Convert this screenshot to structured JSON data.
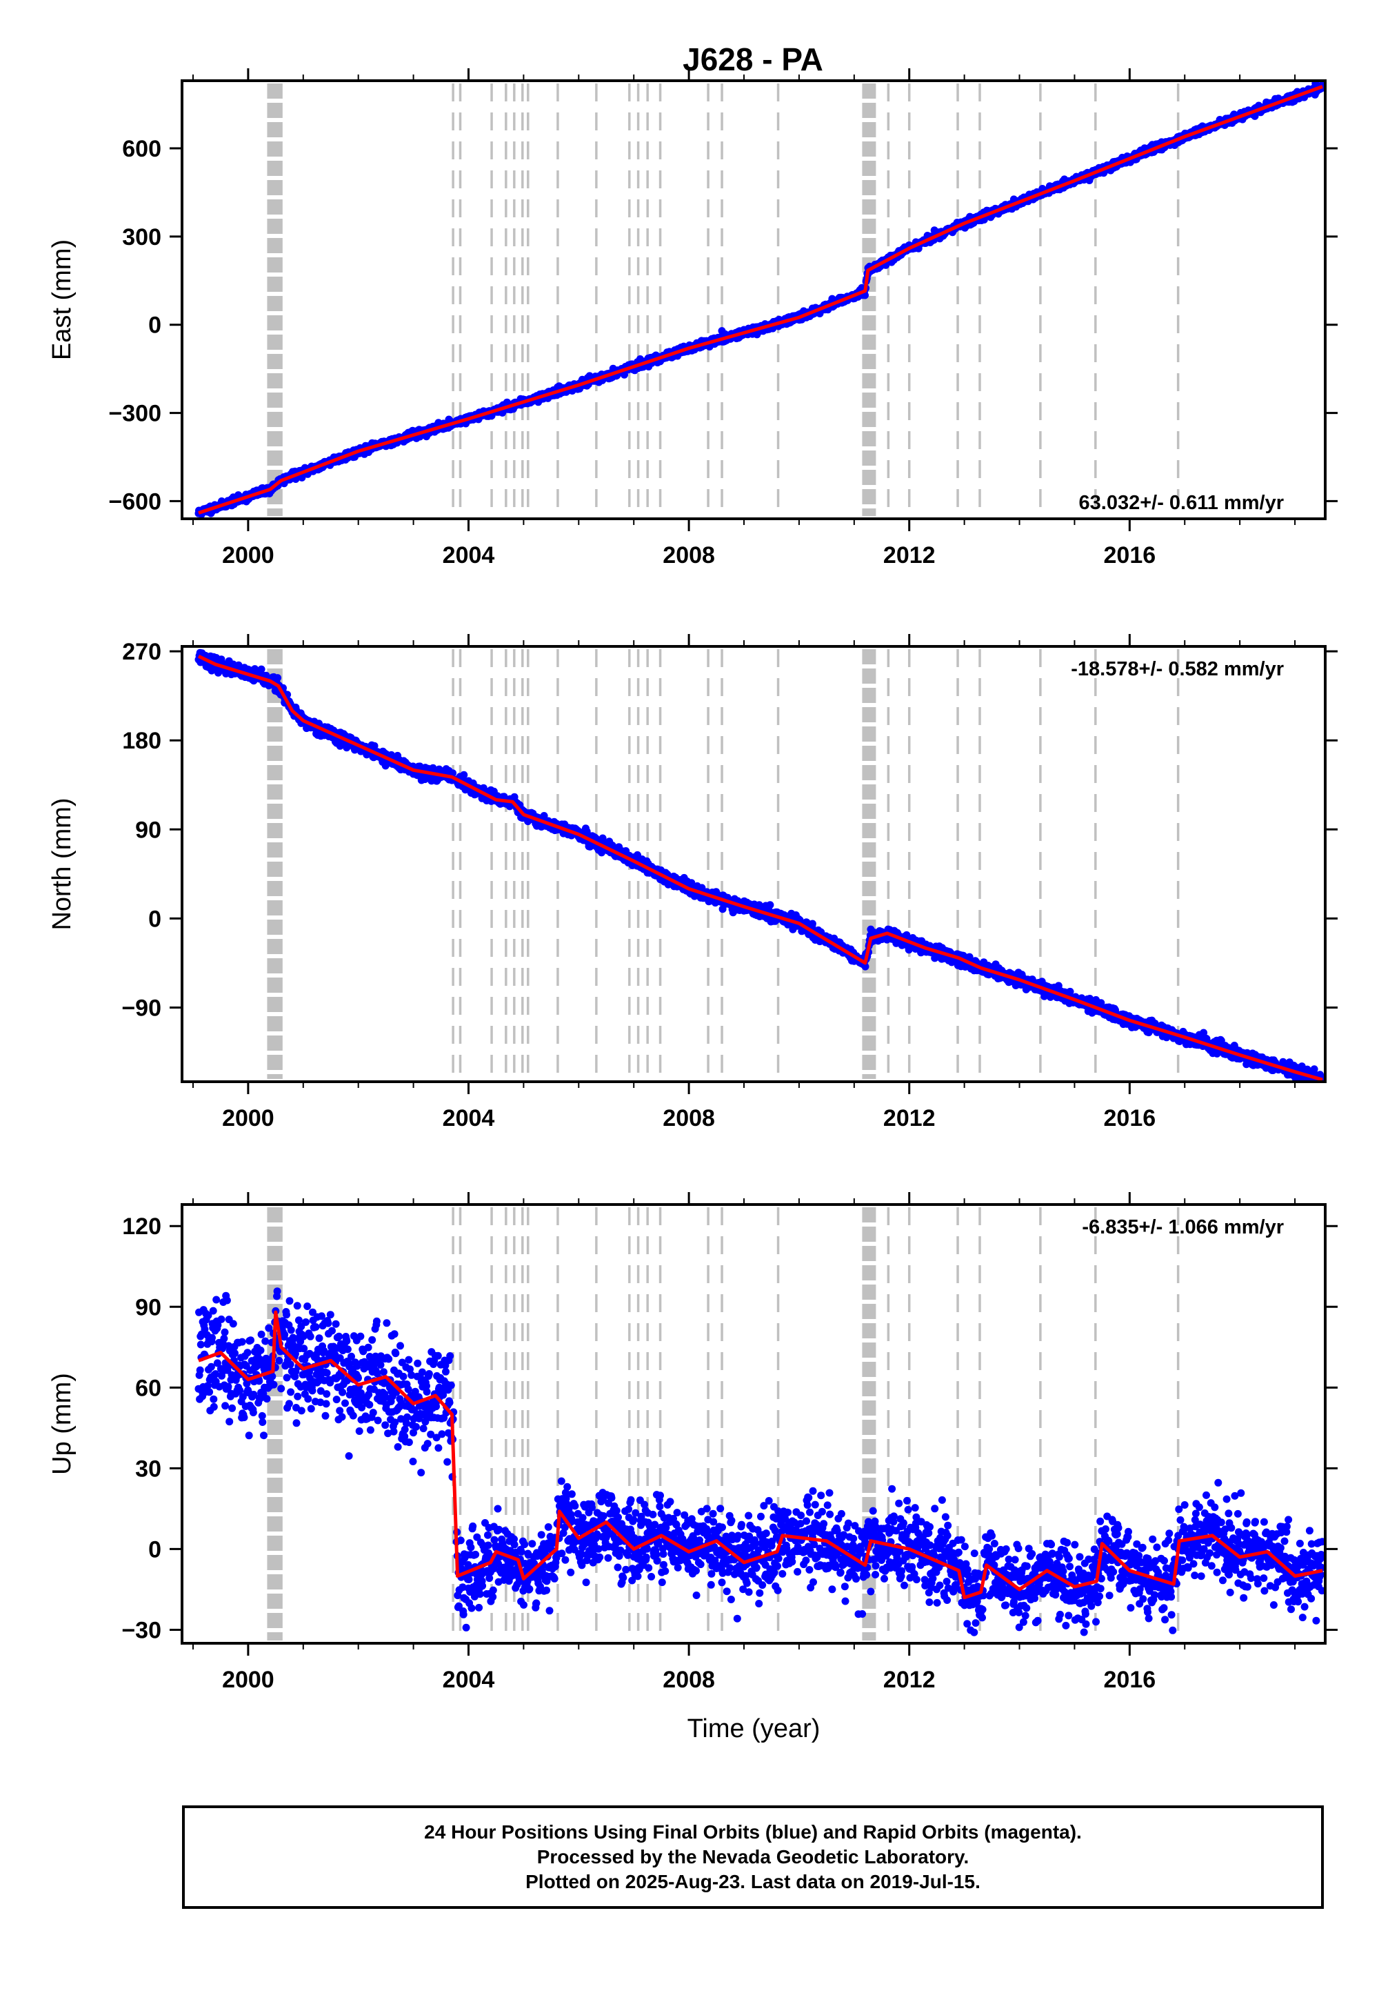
{
  "title": "J628 - PA",
  "caption": [
    "24 Hour Positions Using Final Orbits (blue) and Rapid Orbits (magenta).",
    "Processed by the Nevada Geodetic Laboratory.",
    "Plotted on 2025-Aug-23. Last data on 2019-Jul-15."
  ],
  "colors": {
    "data_points": "#0000ff",
    "model_line": "#ff0000",
    "event_lines": "#c0c0c0",
    "frame": "#000000"
  },
  "chart_data": [
    {
      "type": "scatter",
      "id": "east",
      "ylabel": "East (mm)",
      "xlabel": "",
      "xlim": [
        1998.8,
        2019.55
      ],
      "ylim": [
        -660,
        830
      ],
      "xticks": [
        2000,
        2004,
        2008,
        2012,
        2016
      ],
      "yticks": [
        -600,
        -300,
        0,
        300,
        600
      ],
      "ytick_labels": [
        "−600",
        "−300",
        "0",
        "300",
        "600"
      ],
      "rate_label": "63.032+/- 0.611 mm/yr",
      "rate_position": "bottom-right",
      "model": [
        [
          1999.1,
          -640
        ],
        [
          2000.4,
          -560
        ],
        [
          2000.6,
          -530
        ],
        [
          2002.0,
          -430
        ],
        [
          2004.0,
          -320
        ],
        [
          2006.0,
          -205
        ],
        [
          2008.0,
          -80
        ],
        [
          2010.0,
          25
        ],
        [
          2011.2,
          115
        ],
        [
          2011.25,
          185
        ],
        [
          2012.0,
          260
        ],
        [
          2013.0,
          345
        ],
        [
          2015.0,
          490
        ],
        [
          2017.0,
          640
        ],
        [
          2019.5,
          810
        ]
      ],
      "noise_sd": 6,
      "seed": 11
    },
    {
      "type": "scatter",
      "id": "north",
      "ylabel": "North (mm)",
      "xlabel": "",
      "xlim": [
        1998.8,
        2019.55
      ],
      "ylim": [
        -165,
        275
      ],
      "xticks": [
        2000,
        2004,
        2008,
        2012,
        2016
      ],
      "yticks": [
        -90,
        0,
        90,
        180,
        270
      ],
      "ytick_labels": [
        "−90",
        "0",
        "90",
        "180",
        "270"
      ],
      "rate_label": "-18.578+/- 0.582 mm/yr",
      "rate_position": "top-right",
      "model": [
        [
          1999.1,
          265
        ],
        [
          1999.4,
          257
        ],
        [
          2000.4,
          240
        ],
        [
          2000.55,
          235
        ],
        [
          2000.8,
          210
        ],
        [
          2001.0,
          200
        ],
        [
          2002.0,
          175
        ],
        [
          2003.0,
          150
        ],
        [
          2003.7,
          143
        ],
        [
          2004.5,
          120
        ],
        [
          2004.8,
          118
        ],
        [
          2005.0,
          105
        ],
        [
          2006.0,
          85
        ],
        [
          2007.0,
          58
        ],
        [
          2008.0,
          30
        ],
        [
          2009.0,
          12
        ],
        [
          2010.0,
          -5
        ],
        [
          2011.2,
          -45
        ],
        [
          2011.3,
          -20
        ],
        [
          2011.6,
          -15
        ],
        [
          2012.3,
          -30
        ],
        [
          2012.9,
          -40
        ],
        [
          2013.3,
          -50
        ],
        [
          2014.0,
          -62
        ],
        [
          2015.0,
          -82
        ],
        [
          2016.0,
          -103
        ],
        [
          2017.0,
          -120
        ],
        [
          2018.0,
          -138
        ],
        [
          2019.0,
          -155
        ],
        [
          2019.5,
          -163
        ]
      ],
      "noise_sd": 3,
      "seed": 23
    },
    {
      "type": "scatter",
      "id": "up",
      "ylabel": "Up (mm)",
      "xlabel": "Time (year)",
      "xlim": [
        1998.8,
        2019.55
      ],
      "ylim": [
        -35,
        128
      ],
      "xticks": [
        2000,
        2004,
        2008,
        2012,
        2016
      ],
      "yticks": [
        -30,
        0,
        30,
        60,
        90,
        120
      ],
      "ytick_labels": [
        "−30",
        "0",
        "30",
        "60",
        "90",
        "120"
      ],
      "rate_label": "-6.835+/- 1.066 mm/yr",
      "rate_position": "top-right",
      "model": [
        [
          1999.1,
          70
        ],
        [
          1999.5,
          73
        ],
        [
          2000.0,
          63
        ],
        [
          2000.45,
          66
        ],
        [
          2000.5,
          88
        ],
        [
          2000.6,
          75
        ],
        [
          2001.0,
          67
        ],
        [
          2001.5,
          70
        ],
        [
          2002.0,
          61
        ],
        [
          2002.5,
          64
        ],
        [
          2003.0,
          54
        ],
        [
          2003.4,
          57
        ],
        [
          2003.7,
          50
        ],
        [
          2003.8,
          -10
        ],
        [
          2004.4,
          -5
        ],
        [
          2004.5,
          -1
        ],
        [
          2004.9,
          -4
        ],
        [
          2005.0,
          -11
        ],
        [
          2005.6,
          0
        ],
        [
          2005.65,
          14
        ],
        [
          2006.0,
          4
        ],
        [
          2006.5,
          10
        ],
        [
          2007.0,
          0
        ],
        [
          2007.5,
          5
        ],
        [
          2008.0,
          -1
        ],
        [
          2008.5,
          3
        ],
        [
          2009.0,
          -5
        ],
        [
          2009.6,
          -1
        ],
        [
          2009.7,
          5
        ],
        [
          2010.5,
          3
        ],
        [
          2011.2,
          -6
        ],
        [
          2011.3,
          3
        ],
        [
          2012.0,
          0
        ],
        [
          2012.9,
          -8
        ],
        [
          2013.0,
          -18
        ],
        [
          2013.3,
          -16
        ],
        [
          2013.4,
          -6
        ],
        [
          2014.0,
          -15
        ],
        [
          2014.5,
          -8
        ],
        [
          2015.0,
          -14
        ],
        [
          2015.4,
          -12
        ],
        [
          2015.5,
          2
        ],
        [
          2016.0,
          -8
        ],
        [
          2016.8,
          -13
        ],
        [
          2016.9,
          3
        ],
        [
          2017.5,
          5
        ],
        [
          2018.0,
          -3
        ],
        [
          2018.5,
          -1
        ],
        [
          2019.0,
          -10
        ],
        [
          2019.5,
          -8
        ]
      ],
      "noise_sd": 7,
      "seed": 37
    }
  ],
  "events": [
    {
      "x": 2000.42,
      "style": "thick"
    },
    {
      "x": 2000.55,
      "style": "thick"
    },
    {
      "x": 2003.72,
      "style": "dashed"
    },
    {
      "x": 2003.85,
      "style": "dashed"
    },
    {
      "x": 2004.42,
      "style": "dashed"
    },
    {
      "x": 2004.68,
      "style": "dashed"
    },
    {
      "x": 2004.83,
      "style": "dashed"
    },
    {
      "x": 2004.98,
      "style": "dashed"
    },
    {
      "x": 2005.08,
      "style": "dashed"
    },
    {
      "x": 2005.62,
      "style": "dashed"
    },
    {
      "x": 2006.32,
      "style": "dashed"
    },
    {
      "x": 2006.92,
      "style": "dashed"
    },
    {
      "x": 2007.08,
      "style": "dashed"
    },
    {
      "x": 2007.25,
      "style": "dashed"
    },
    {
      "x": 2007.48,
      "style": "dashed"
    },
    {
      "x": 2008.35,
      "style": "dashed"
    },
    {
      "x": 2008.6,
      "style": "dashed"
    },
    {
      "x": 2009.62,
      "style": "dashed"
    },
    {
      "x": 2011.22,
      "style": "thick"
    },
    {
      "x": 2011.32,
      "style": "thick"
    },
    {
      "x": 2011.62,
      "style": "dashed"
    },
    {
      "x": 2012.0,
      "style": "dashed"
    },
    {
      "x": 2012.88,
      "style": "dashed"
    },
    {
      "x": 2013.28,
      "style": "dashed"
    },
    {
      "x": 2014.38,
      "style": "dashed"
    },
    {
      "x": 2015.38,
      "style": "dashed"
    },
    {
      "x": 2016.88,
      "style": "dashed"
    }
  ]
}
